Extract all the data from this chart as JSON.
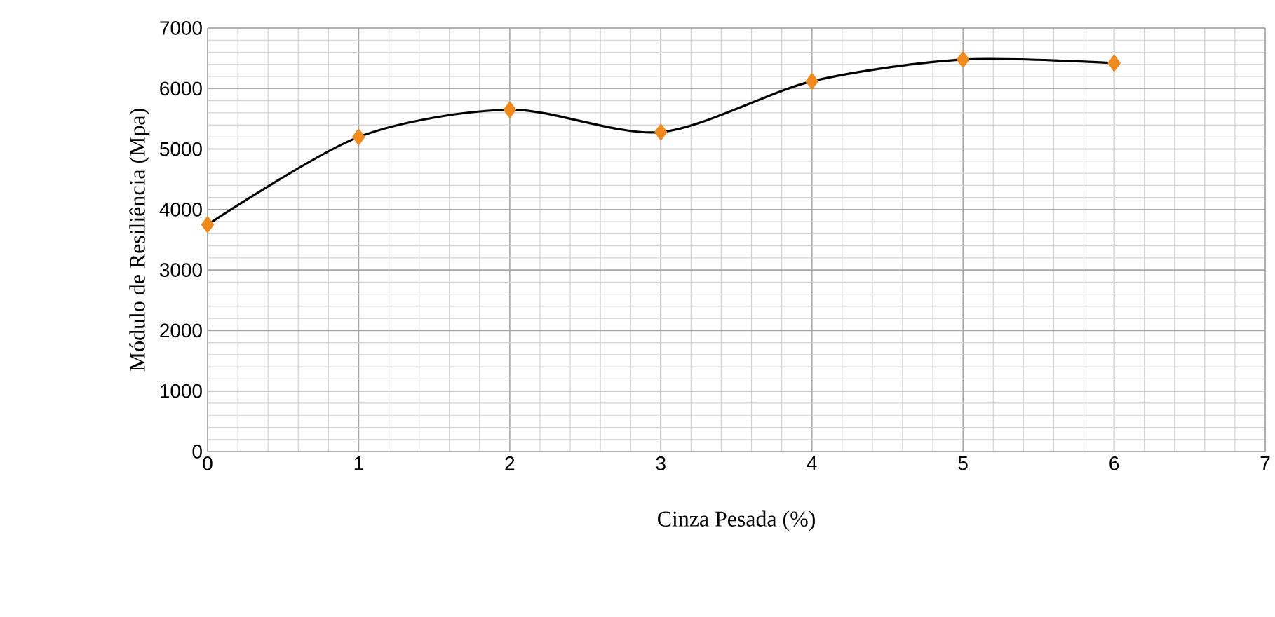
{
  "chart_data": {
    "type": "line",
    "xlabel": "Cinza Pesada (%)",
    "ylabel": "Módulo de Resiliência (Mpa)",
    "x": [
      0,
      1,
      2,
      3,
      4,
      5,
      6
    ],
    "series": [
      {
        "color": "#f08a1e",
        "values": [
          3750,
          5200,
          5650,
          5280,
          6120,
          6480,
          6420
        ]
      }
    ],
    "xlim": [
      0,
      7
    ],
    "ylim": [
      0,
      7000
    ],
    "xticks": [
      0,
      1,
      2,
      3,
      4,
      5,
      6,
      7
    ],
    "yticks": [
      0,
      1000,
      2000,
      3000,
      4000,
      5000,
      6000,
      7000
    ],
    "grid": true,
    "marker": "diamond",
    "line_style": "solid"
  }
}
